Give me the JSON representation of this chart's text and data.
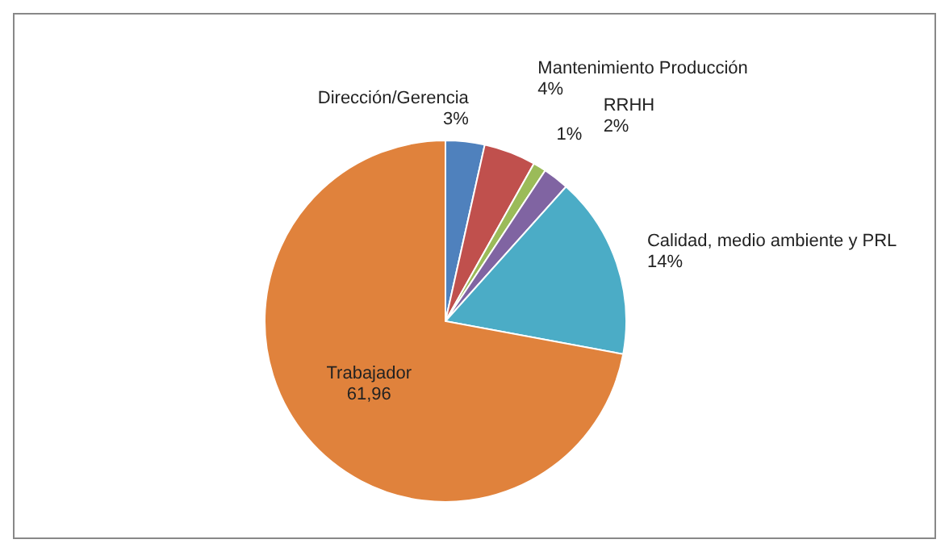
{
  "chart_data": {
    "type": "pie",
    "categories": [
      "Dirección/Gerencia",
      "Mantenimiento Producción",
      null,
      "RRHH",
      "Calidad, medio ambiente y PRL",
      "Trabajador"
    ],
    "values": [
      3,
      4,
      1,
      2,
      14,
      61.96
    ],
    "value_labels": [
      "3%",
      "4%",
      "1%",
      "2%",
      "14%",
      "61,96"
    ],
    "colors": [
      "#4f81bd",
      "#c0504d",
      "#9bbb59",
      "#8064a2",
      "#4bacc6",
      "#e0823c"
    ],
    "legend": false
  }
}
